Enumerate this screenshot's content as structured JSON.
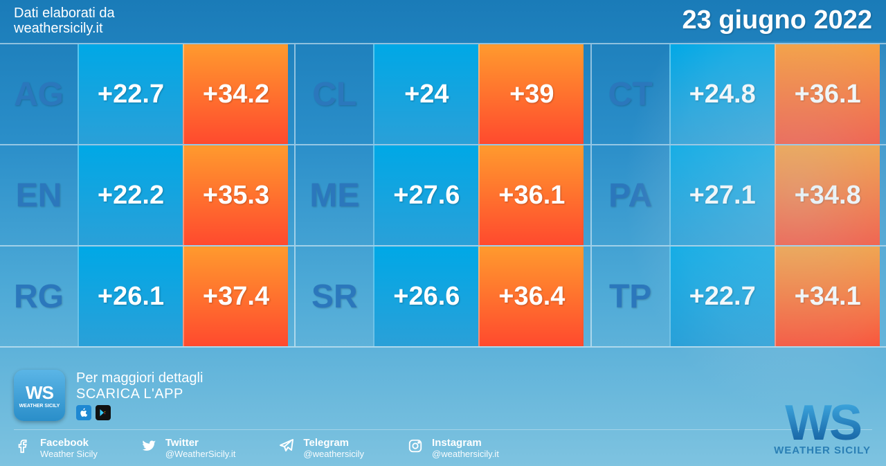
{
  "header": {
    "source_label": "Dati elaborati da",
    "source_site": "weathersicily.it",
    "date": "23 giugno 2022"
  },
  "colors": {
    "code_color": "#2b77bc",
    "min_gradient": [
      "#00a8e6",
      "#2aa0d8"
    ],
    "max_gradient_top": "#ff9a2e",
    "max_gradient_bottom": "#ff4a2e",
    "row_border": "rgba(255,255,255,0.5)",
    "bg_top": "#1a7bb8",
    "bg_bottom": "#7ec3e0"
  },
  "table": {
    "type": "temperature-grid",
    "columns_per_row": 3,
    "cell_fontsize": 38,
    "code_fontsize": 48,
    "rows": [
      [
        {
          "code": "AG",
          "min": "+22.7",
          "max": "+34.2"
        },
        {
          "code": "CL",
          "min": "+24",
          "max": "+39"
        },
        {
          "code": "CT",
          "min": "+24.8",
          "max": "+36.1"
        }
      ],
      [
        {
          "code": "EN",
          "min": "+22.2",
          "max": "+35.3"
        },
        {
          "code": "ME",
          "min": "+27.6",
          "max": "+36.1"
        },
        {
          "code": "PA",
          "min": "+27.1",
          "max": "+34.8"
        }
      ],
      [
        {
          "code": "RG",
          "min": "+26.1",
          "max": "+37.4"
        },
        {
          "code": "SR",
          "min": "+26.6",
          "max": "+36.4"
        },
        {
          "code": "TP",
          "min": "+22.7",
          "max": "+34.1"
        }
      ]
    ]
  },
  "promo": {
    "line1": "Per maggiori dettagli",
    "line2": "SCARICA L'APP",
    "app_short": "WS",
    "app_sub": "WEATHER SICILY"
  },
  "brand": {
    "logo_text": "WS",
    "logo_sub": "WEATHER SICILY"
  },
  "socials": [
    {
      "icon": "facebook",
      "name": "Facebook",
      "handle": "Weather Sicily"
    },
    {
      "icon": "twitter",
      "name": "Twitter",
      "handle": "@WeatherSicily.it"
    },
    {
      "icon": "telegram",
      "name": "Telegram",
      "handle": "@weathersicily"
    },
    {
      "icon": "instagram",
      "name": "Instagram",
      "handle": "@weathersicily.it"
    }
  ]
}
